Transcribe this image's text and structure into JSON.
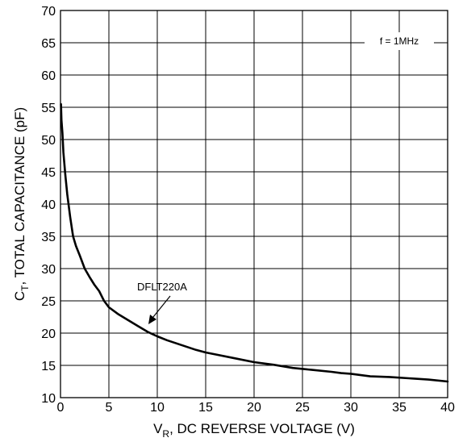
{
  "chart_data": {
    "type": "line",
    "title": "",
    "xlabel_main": "V",
    "xlabel_sub": "R",
    "xlabel_rest": ", DC REVERSE VOLTAGE (V)",
    "ylabel_main": "C",
    "ylabel_sub": "T",
    "ylabel_rest": ", TOTAL CAPACITANCE (pF)",
    "xlim": [
      0,
      40
    ],
    "ylim": [
      10,
      70
    ],
    "x_ticks": [
      "0",
      "5",
      "10",
      "15",
      "20",
      "25",
      "30",
      "35",
      "40"
    ],
    "y_ticks": [
      "10",
      "15",
      "20",
      "25",
      "30",
      "35",
      "40",
      "45",
      "50",
      "55",
      "60",
      "65",
      "70"
    ],
    "grid": true,
    "condition_label": "f = 1MHz",
    "annotation": {
      "text": "DFLT220A",
      "points_to": [
        9.3,
        20.1
      ]
    },
    "series": [
      {
        "name": "DFLT220A",
        "x": [
          0.05,
          0.1,
          0.2,
          0.3,
          0.5,
          0.7,
          1.0,
          1.3,
          1.6,
          2.0,
          2.5,
          3.0,
          3.5,
          4.0,
          4.5,
          5.0,
          6.0,
          7.0,
          8.0,
          9.0,
          10.0,
          11.0,
          12.0,
          13.0,
          14.0,
          15.0,
          16.0,
          18.0,
          20.0,
          22.0,
          24.0,
          26.0,
          28.0,
          29.0,
          30.0,
          32.0,
          34.0,
          36.0,
          38.0,
          40.0
        ],
        "y": [
          55.5,
          53.0,
          51.0,
          48.0,
          44.5,
          41.5,
          38.0,
          35.0,
          33.5,
          32.0,
          30.0,
          28.7,
          27.5,
          26.5,
          25.0,
          24.0,
          22.9,
          22.0,
          21.1,
          20.2,
          19.5,
          18.9,
          18.4,
          17.9,
          17.4,
          17.0,
          16.7,
          16.1,
          15.5,
          15.1,
          14.6,
          14.3,
          14.0,
          13.8,
          13.7,
          13.3,
          13.2,
          13.0,
          12.8,
          12.5
        ]
      }
    ]
  }
}
